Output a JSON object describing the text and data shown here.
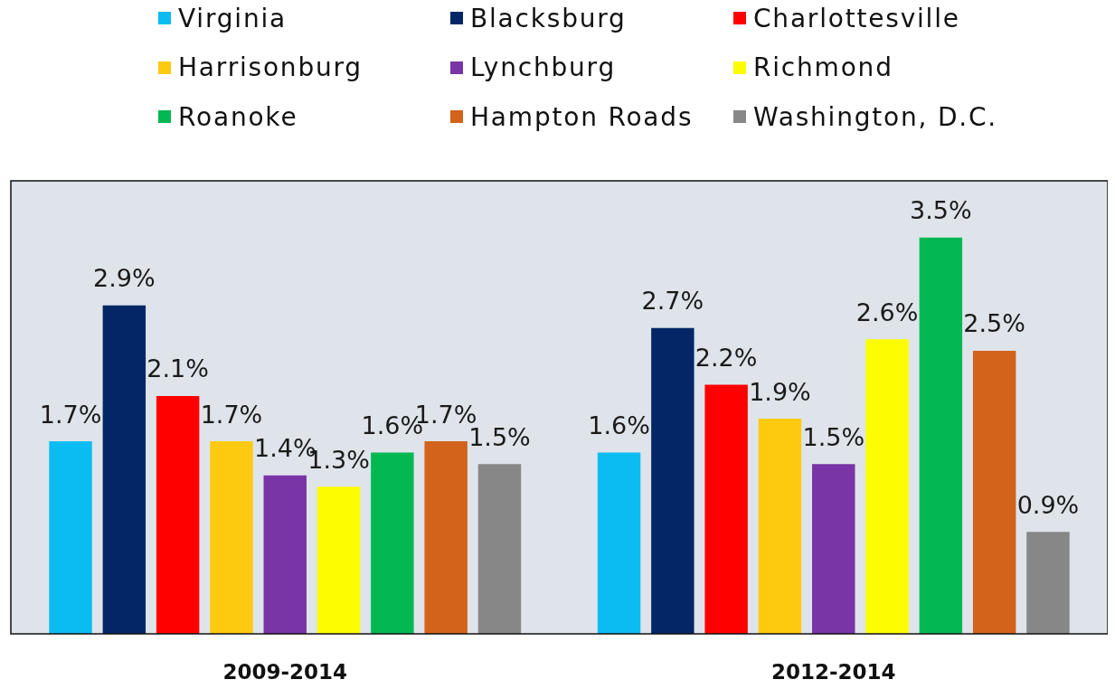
{
  "chart_data": {
    "type": "bar",
    "categories": [
      "2009-2014",
      "2012-2014"
    ],
    "legend": "top",
    "tick_labels": "x",
    "series": [
      {
        "name": "Virginia",
        "color": "#0bbcf2",
        "values": [
          1.7,
          1.6
        ],
        "value_labels": [
          "1.7%",
          "1.6%"
        ]
      },
      {
        "name": "Blacksburg",
        "color": "#032766",
        "values": [
          2.9,
          2.7
        ],
        "value_labels": [
          "2.9%",
          "2.7%"
        ]
      },
      {
        "name": "Charlottesville",
        "color": "#fe0000",
        "values": [
          2.1,
          2.2
        ],
        "value_labels": [
          "2.1%",
          "2.2%"
        ]
      },
      {
        "name": "Harrisonburg",
        "color": "#fdca10",
        "values": [
          1.7,
          1.9
        ],
        "value_labels": [
          "1.7%",
          "1.9%"
        ]
      },
      {
        "name": "Lynchburg",
        "color": "#7934a6",
        "values": [
          1.4,
          1.5
        ],
        "value_labels": [
          "1.4%",
          "1.5%"
        ]
      },
      {
        "name": "Richmond",
        "color": "#fdfc00",
        "values": [
          1.3,
          2.6
        ],
        "value_labels": [
          "1.3%",
          "2.6%"
        ]
      },
      {
        "name": "Roanoke",
        "color": "#03b853",
        "values": [
          1.6,
          3.5
        ],
        "value_labels": [
          "1.6%",
          "3.5%"
        ]
      },
      {
        "name": "Hampton Roads",
        "color": "#d3621a",
        "values": [
          1.7,
          2.5
        ],
        "value_labels": [
          "1.7%",
          "2.5%"
        ]
      },
      {
        "name": "Washington, D.C.",
        "color": "#878787",
        "values": [
          1.5,
          0.9
        ],
        "value_labels": [
          "1.5%",
          "0.9%"
        ]
      }
    ]
  }
}
